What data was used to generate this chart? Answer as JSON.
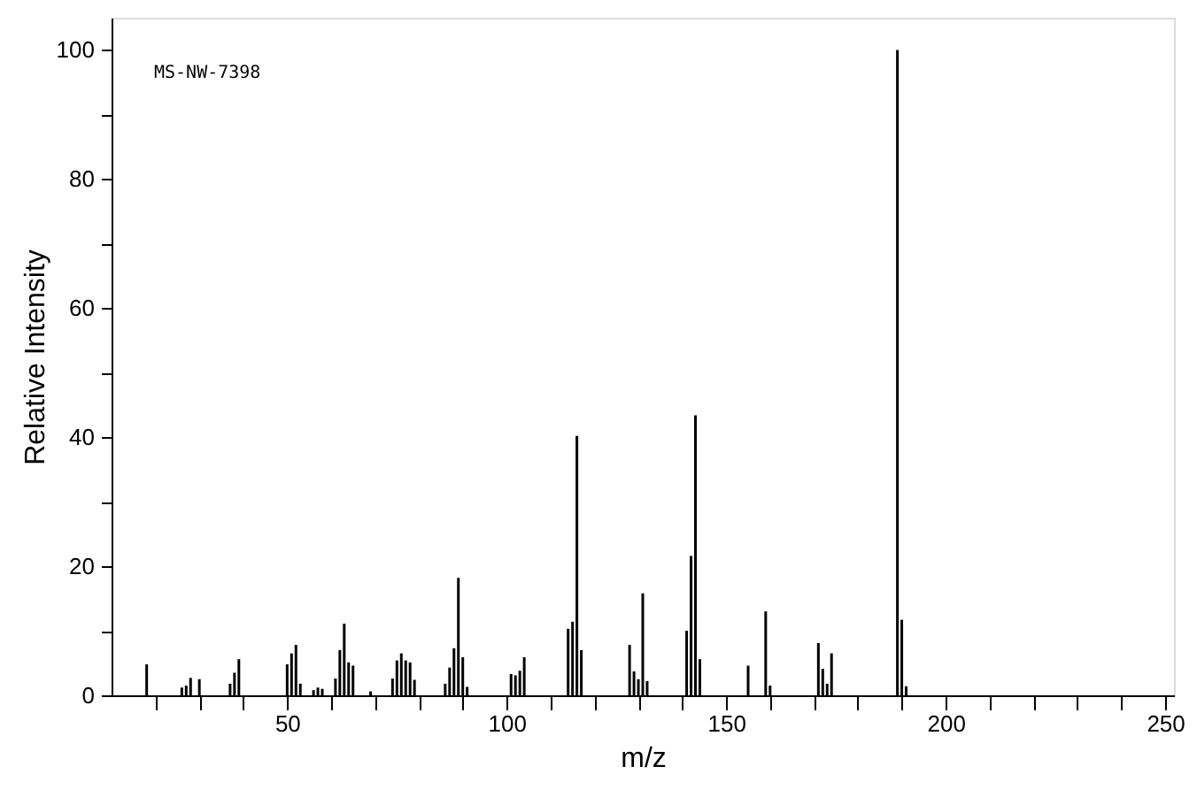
{
  "chart_data": {
    "type": "bar",
    "xlabel": "m/z",
    "ylabel": "Relative Intensity",
    "annotations": [
      "MS-NW-7398"
    ],
    "x": [
      18,
      26,
      27,
      28,
      30,
      37,
      38,
      39,
      50,
      51,
      52,
      53,
      56,
      57,
      58,
      61,
      62,
      63,
      64,
      65,
      69,
      74,
      75,
      76,
      77,
      78,
      79,
      86,
      87,
      88,
      89,
      90,
      91,
      101,
      102,
      103,
      104,
      114,
      115,
      116,
      117,
      128,
      129,
      130,
      131,
      132,
      141,
      142,
      143,
      144,
      155,
      159,
      160,
      171,
      172,
      173,
      174,
      189,
      190,
      191
    ],
    "values": [
      4.8,
      1.2,
      1.5,
      2.7,
      2.5,
      1.8,
      3.5,
      5.6,
      4.8,
      6.5,
      7.8,
      1.8,
      0.8,
      1.2,
      1.0,
      2.6,
      7,
      11.1,
      5.1,
      4.6,
      0.6,
      2.6,
      5.4,
      6.5,
      5.4,
      5.1,
      2.4,
      1.8,
      4.3,
      7.3,
      18.2,
      5.9,
      1.3,
      3.3,
      3.1,
      3.8,
      5.9,
      10.3,
      11.4,
      40.2,
      7,
      7.8,
      3.7,
      2.5,
      15.8,
      2.2,
      10,
      21.6,
      43.4,
      5.6,
      4.6,
      13,
      1.5,
      8.1,
      4.1,
      1.8,
      6.5,
      100,
      11.7,
      1.4
    ],
    "color": "#000000",
    "xlim": [
      10,
      252
    ],
    "xticks": [
      {
        "value": 20,
        "label": null
      },
      {
        "value": 30,
        "label": null
      },
      {
        "value": 40,
        "label": null
      },
      50,
      {
        "value": 60,
        "label": null
      },
      {
        "value": 70,
        "label": null
      },
      {
        "value": 80,
        "label": null
      },
      {
        "value": 90,
        "label": null
      },
      100,
      {
        "value": 110,
        "label": null
      },
      {
        "value": 120,
        "label": null
      },
      {
        "value": 130,
        "label": null
      },
      {
        "value": 140,
        "label": null
      },
      150,
      {
        "value": 160,
        "label": null
      },
      {
        "value": 170,
        "label": null
      },
      {
        "value": 180,
        "label": null
      },
      {
        "value": 190,
        "label": null
      },
      200,
      {
        "value": 210,
        "label": null
      },
      {
        "value": 220,
        "label": null
      },
      {
        "value": 230,
        "label": null
      },
      {
        "value": 240,
        "label": null
      },
      250
    ],
    "ylim": [
      0,
      105
    ],
    "yticks": [
      0,
      {
        "value": 10,
        "label": null
      },
      20,
      {
        "value": 30,
        "label": null
      },
      40,
      {
        "value": 50,
        "label": null
      },
      60,
      {
        "value": 70,
        "label": null
      },
      80,
      {
        "value": 90,
        "label": null
      },
      100
    ],
    "grid": false
  }
}
